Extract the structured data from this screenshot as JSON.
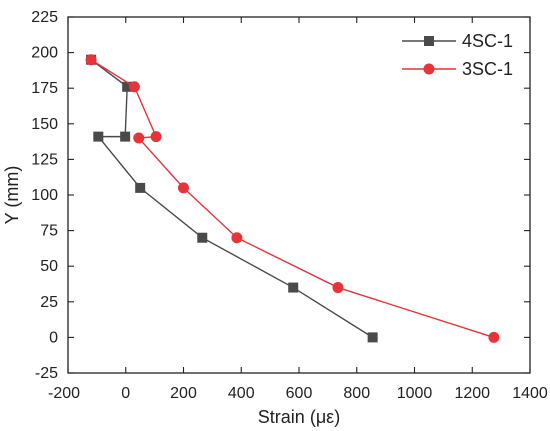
{
  "chart_data": {
    "type": "line",
    "title": "",
    "xlabel": "Strain (με)",
    "ylabel": "Y (mm)",
    "xlim": [
      -200,
      1400
    ],
    "ylim": [
      -25,
      225
    ],
    "xticks": [
      -200,
      0,
      200,
      400,
      600,
      800,
      1000,
      1200,
      1400
    ],
    "yticks": [
      -25,
      0,
      25,
      50,
      75,
      100,
      125,
      150,
      175,
      200,
      225
    ],
    "grid": false,
    "legend_position": "top-right",
    "series": [
      {
        "name": "4SC-1",
        "color": "#4a4a4a",
        "marker": "square",
        "points": [
          {
            "x": -120,
            "y": 195
          },
          {
            "x": 5,
            "y": 176
          },
          {
            "x": -2,
            "y": 141
          },
          {
            "x": -95,
            "y": 141
          },
          {
            "x": 50,
            "y": 105
          },
          {
            "x": 265,
            "y": 70
          },
          {
            "x": 580,
            "y": 35
          },
          {
            "x": 855,
            "y": 0
          }
        ]
      },
      {
        "name": "3SC-1",
        "color": "#e8333a",
        "marker": "circle",
        "points": [
          {
            "x": -120,
            "y": 195
          },
          {
            "x": 30,
            "y": 176
          },
          {
            "x": 105,
            "y": 141
          },
          {
            "x": 45,
            "y": 140
          },
          {
            "x": 200,
            "y": 105
          },
          {
            "x": 385,
            "y": 70
          },
          {
            "x": 735,
            "y": 35
          },
          {
            "x": 1275,
            "y": 0
          }
        ]
      }
    ]
  }
}
